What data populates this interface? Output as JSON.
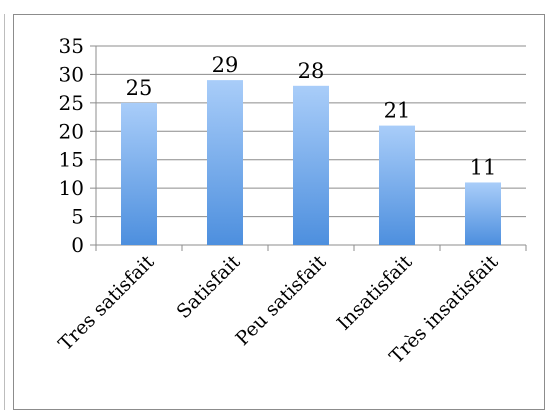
{
  "chart_data": {
    "type": "bar",
    "title": "",
    "xlabel": "",
    "ylabel": "",
    "categories": [
      "Tres satisfait",
      "Satisfait",
      "Peu satisfait",
      "Insatisfait",
      "Très insatisfait"
    ],
    "values": [
      25,
      29,
      28,
      21,
      11
    ],
    "data_labels": [
      "25",
      "29",
      "28",
      "21",
      "11"
    ],
    "ylim": [
      0,
      35
    ],
    "y_ticks": [
      0,
      5,
      10,
      15,
      20,
      25,
      30,
      35
    ],
    "y_tick_labels": [
      "0",
      "5",
      "10",
      "15",
      "20",
      "25",
      "30",
      "35"
    ],
    "grid": true,
    "legend": "none",
    "colors": {
      "bar_top": "#a9cdf9",
      "bar_bottom": "#4d8fde",
      "gridline": "#8c8c8c",
      "axis": "#8c8c8c"
    }
  }
}
